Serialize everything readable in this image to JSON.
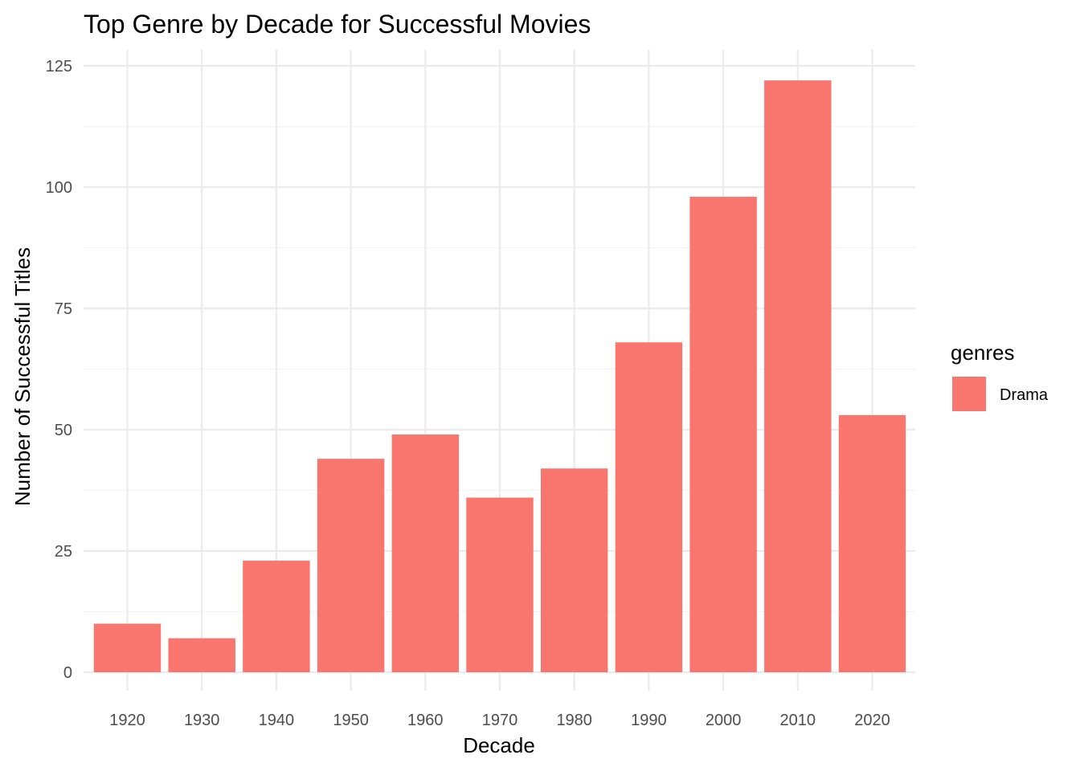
{
  "chart_data": {
    "type": "bar",
    "title": "Top Genre by Decade for Successful Movies",
    "xlabel": "Decade",
    "ylabel": "Number of Successful Titles",
    "categories": [
      "1920",
      "1930",
      "1940",
      "1950",
      "1960",
      "1970",
      "1980",
      "1990",
      "2000",
      "2010",
      "2020"
    ],
    "series": [
      {
        "name": "Drama",
        "color": "#F8766D",
        "values": [
          10,
          7,
          23,
          44,
          49,
          36,
          42,
          68,
          98,
          122,
          53
        ]
      }
    ],
    "ylim": [
      0,
      125
    ],
    "yticks": [
      "0",
      "25",
      "50",
      "75",
      "100",
      "125"
    ],
    "grid": true,
    "legend": {
      "title": "genres",
      "position": "right"
    }
  }
}
